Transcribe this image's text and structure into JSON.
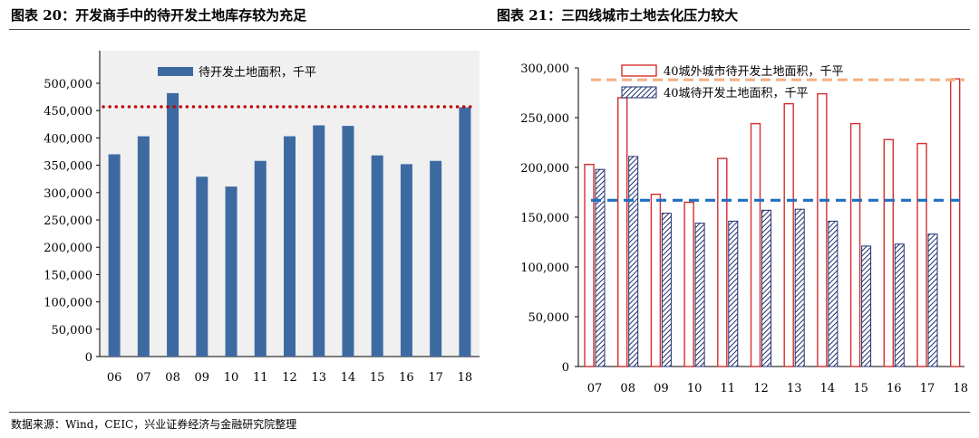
{
  "header": {
    "left_title": "图表 20：开发商手中的待开发土地库存较为充足",
    "right_title": "图表 21：三四线城市土地去化压力较大"
  },
  "footer": {
    "source": "数据来源：Wind，CEIC，兴业证券经济与金融研究院整理"
  },
  "colors": {
    "bar_blue": "#3e6aa2",
    "dotted_red": "#c00000",
    "outline_red": "#d62d2d",
    "hatch_navy": "#1f2f6e",
    "dash_orange": "#f4b183",
    "dash_blue": "#1f6fc0",
    "left_plot_bg": "#f0f0f0"
  },
  "chart_data": [
    {
      "type": "bar",
      "legend": [
        "待开发土地面积，千平"
      ],
      "categories": [
        "06",
        "07",
        "08",
        "09",
        "10",
        "11",
        "12",
        "13",
        "14",
        "15",
        "16",
        "17",
        "18"
      ],
      "series": [
        {
          "name": "待开发土地面积，千平",
          "values": [
            370000,
            403000,
            482000,
            329000,
            311000,
            358000,
            403000,
            423000,
            422000,
            368000,
            352000,
            358000,
            456000
          ]
        }
      ],
      "reference_lines": [
        {
          "style": "dotted",
          "value": 457000
        }
      ],
      "ylim": [
        0,
        500000
      ],
      "yticks": [
        "0",
        "50,000",
        "100,000",
        "150,000",
        "200,000",
        "250,000",
        "300,000",
        "350,000",
        "400,000",
        "450,000",
        "500,000"
      ],
      "grid": false,
      "legend_position": "top"
    },
    {
      "type": "bar",
      "legend": [
        "40城外城市待开发土地面积，千平",
        "40城待开发土地面积，千平"
      ],
      "categories": [
        "07",
        "08",
        "09",
        "10",
        "11",
        "12",
        "13",
        "14",
        "15",
        "16",
        "17",
        "18"
      ],
      "series": [
        {
          "name": "40城外城市待开发土地面积，千平",
          "values": [
            203000,
            270000,
            173000,
            165000,
            209000,
            244000,
            264000,
            274000,
            244000,
            228000,
            224000,
            289000
          ]
        },
        {
          "name": "40城待开发土地面积，千平",
          "values": [
            198000,
            211000,
            154000,
            144000,
            146000,
            157000,
            158000,
            146000,
            121000,
            123000,
            133000,
            null
          ]
        }
      ],
      "reference_lines": [
        {
          "style": "dashed-orange",
          "value": 288000
        },
        {
          "style": "dashed-blue",
          "value": 167000
        }
      ],
      "ylim": [
        0,
        300000
      ],
      "yticks": [
        "0",
        "50,000",
        "100,000",
        "150,000",
        "200,000",
        "250,000",
        "300,000"
      ],
      "grid": false,
      "legend_position": "top"
    }
  ]
}
